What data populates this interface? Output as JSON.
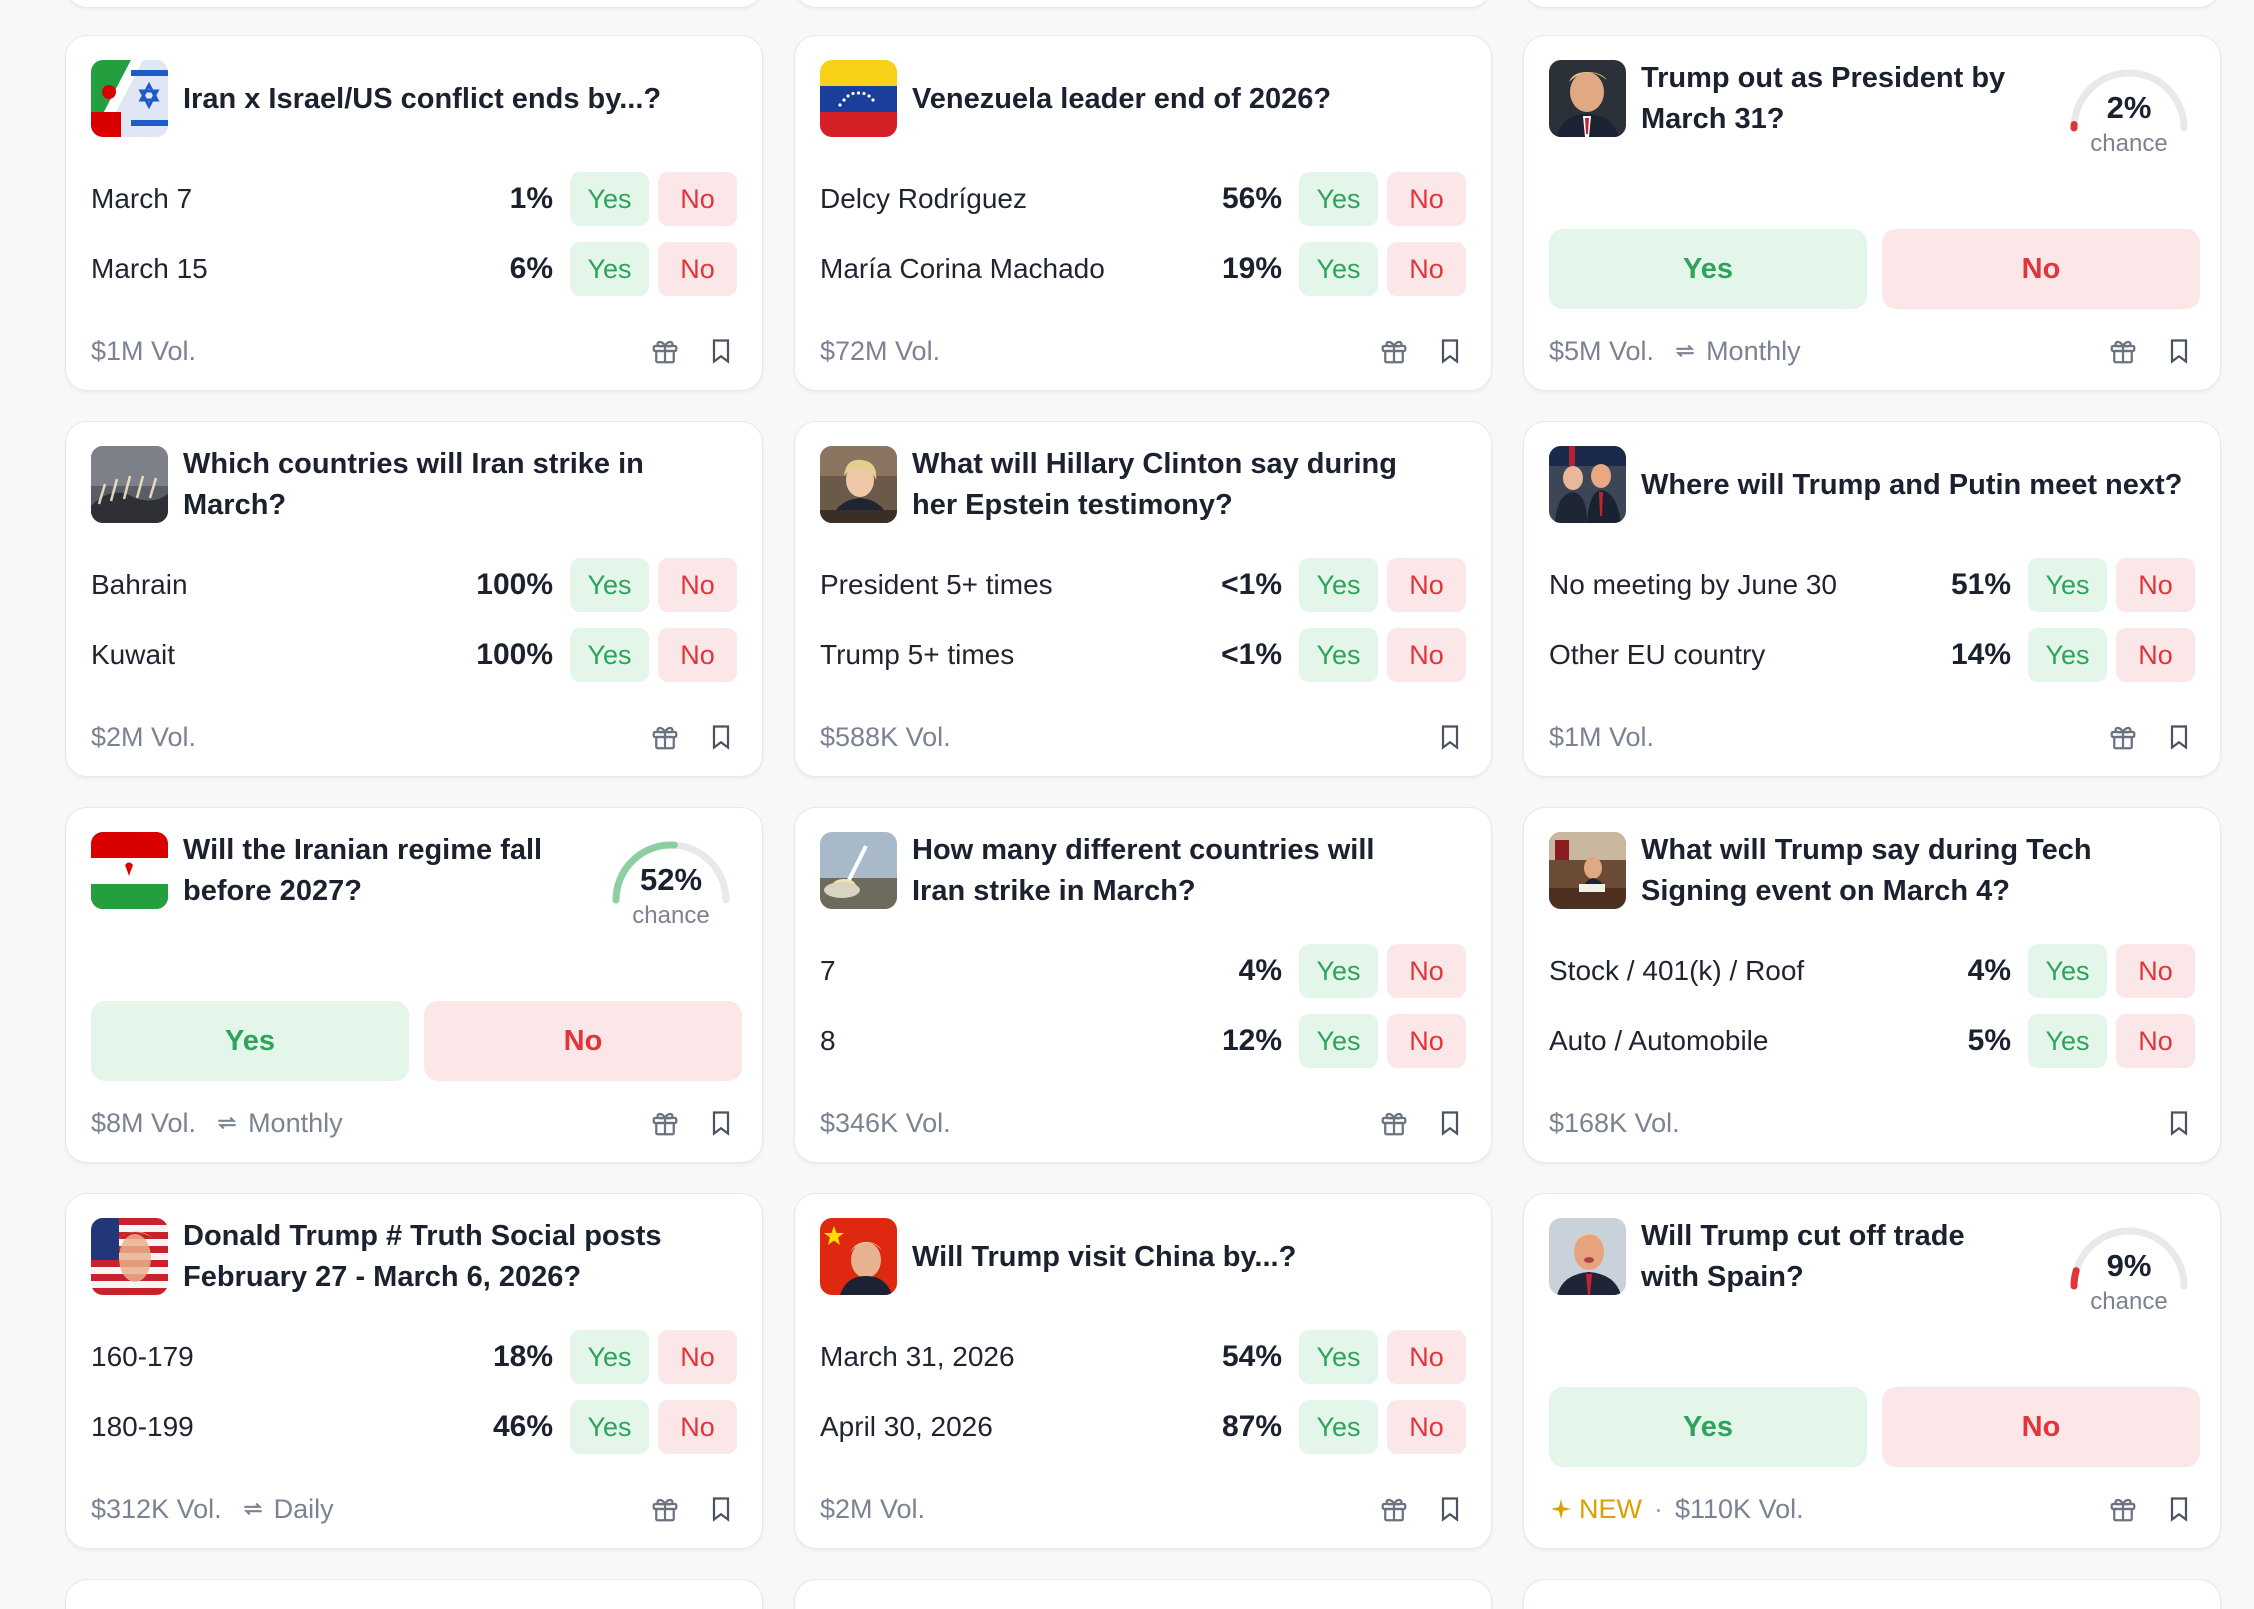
{
  "colors": {
    "yes_bg": "#e3f6e9",
    "yes_text": "#2ea35a",
    "no_bg": "#fbe7e8",
    "no_text": "#e3343a",
    "muted": "#7b8291",
    "new_accent": "#d8a000"
  },
  "labels": {
    "yes": "Yes",
    "no": "No",
    "chance": "chance",
    "vol_suffix": "Vol."
  },
  "cards": [
    {
      "title": "Iran x Israel/US conflict ends by...?",
      "thumb": "iran-israel-flag-image",
      "outcomes": [
        {
          "label": "March 7",
          "pct": "1%"
        },
        {
          "label": "March 15",
          "pct": "6%"
        }
      ],
      "volume": "$1M Vol."
    },
    {
      "title": "Venezuela leader end of 2026?",
      "thumb": "venezuela-flag-image",
      "outcomes": [
        {
          "label": "Delcy Rodríguez",
          "pct": "56%"
        },
        {
          "label": "María Corina Machado",
          "pct": "19%"
        }
      ],
      "volume": "$72M Vol."
    },
    {
      "title": "Trump out as President by March 31?",
      "thumb": "trump-portrait-image",
      "chance": "2%",
      "chance_value": 0.02,
      "volume": "$5M Vol.",
      "recurrence": "Monthly"
    },
    {
      "title": "Which countries will Iran strike in March?",
      "thumb": "missile-launch-image",
      "outcomes": [
        {
          "label": "Bahrain",
          "pct": "100%"
        },
        {
          "label": "Kuwait",
          "pct": "100%"
        }
      ],
      "volume": "$2M Vol."
    },
    {
      "title": "What will Hillary Clinton say during her Epstein testimony?",
      "thumb": "hillary-clinton-image",
      "outcomes": [
        {
          "label": "President 5+ times",
          "pct": "<1%"
        },
        {
          "label": "Trump 5+ times",
          "pct": "<1%"
        }
      ],
      "volume": "$588K Vol."
    },
    {
      "title": "Where will Trump and Putin meet next?",
      "thumb": "trump-putin-image",
      "outcomes": [
        {
          "label": "No meeting by June 30",
          "pct": "51%"
        },
        {
          "label": "Other EU country",
          "pct": "14%"
        }
      ],
      "volume": "$1M Vol."
    },
    {
      "title": "Will the Iranian regime fall before 2027?",
      "thumb": "iran-flag-image",
      "chance": "52%",
      "chance_value": 0.52,
      "volume": "$8M Vol.",
      "recurrence": "Monthly"
    },
    {
      "title": "How many different countries will Iran strike in March?",
      "thumb": "missile-strike-image",
      "outcomes": [
        {
          "label": "7",
          "pct": "4%"
        },
        {
          "label": "8",
          "pct": "12%"
        }
      ],
      "volume": "$346K Vol."
    },
    {
      "title": "What will Trump say during Tech Signing event on March 4?",
      "thumb": "oval-office-image",
      "outcomes": [
        {
          "label": "Stock / 401(k) / Roof",
          "pct": "4%"
        },
        {
          "label": "Auto / Automobile",
          "pct": "5%"
        }
      ],
      "volume": "$168K Vol."
    },
    {
      "title": "Donald Trump # Truth Social posts February 27 - March 6, 2026?",
      "thumb": "trump-flag-poster-image",
      "outcomes": [
        {
          "label": "160-179",
          "pct": "18%"
        },
        {
          "label": "180-199",
          "pct": "46%"
        }
      ],
      "volume": "$312K Vol.",
      "recurrence": "Daily"
    },
    {
      "title": "Will Trump visit China by...?",
      "thumb": "trump-china-image",
      "outcomes": [
        {
          "label": "March 31, 2026",
          "pct": "54%"
        },
        {
          "label": "April 30, 2026",
          "pct": "87%"
        }
      ],
      "volume": "$2M Vol."
    },
    {
      "title": "Will Trump cut off trade with Spain?",
      "thumb": "trump-speaking-image",
      "chance": "9%",
      "chance_value": 0.09,
      "badge": "NEW",
      "volume": "$110K Vol."
    }
  ]
}
